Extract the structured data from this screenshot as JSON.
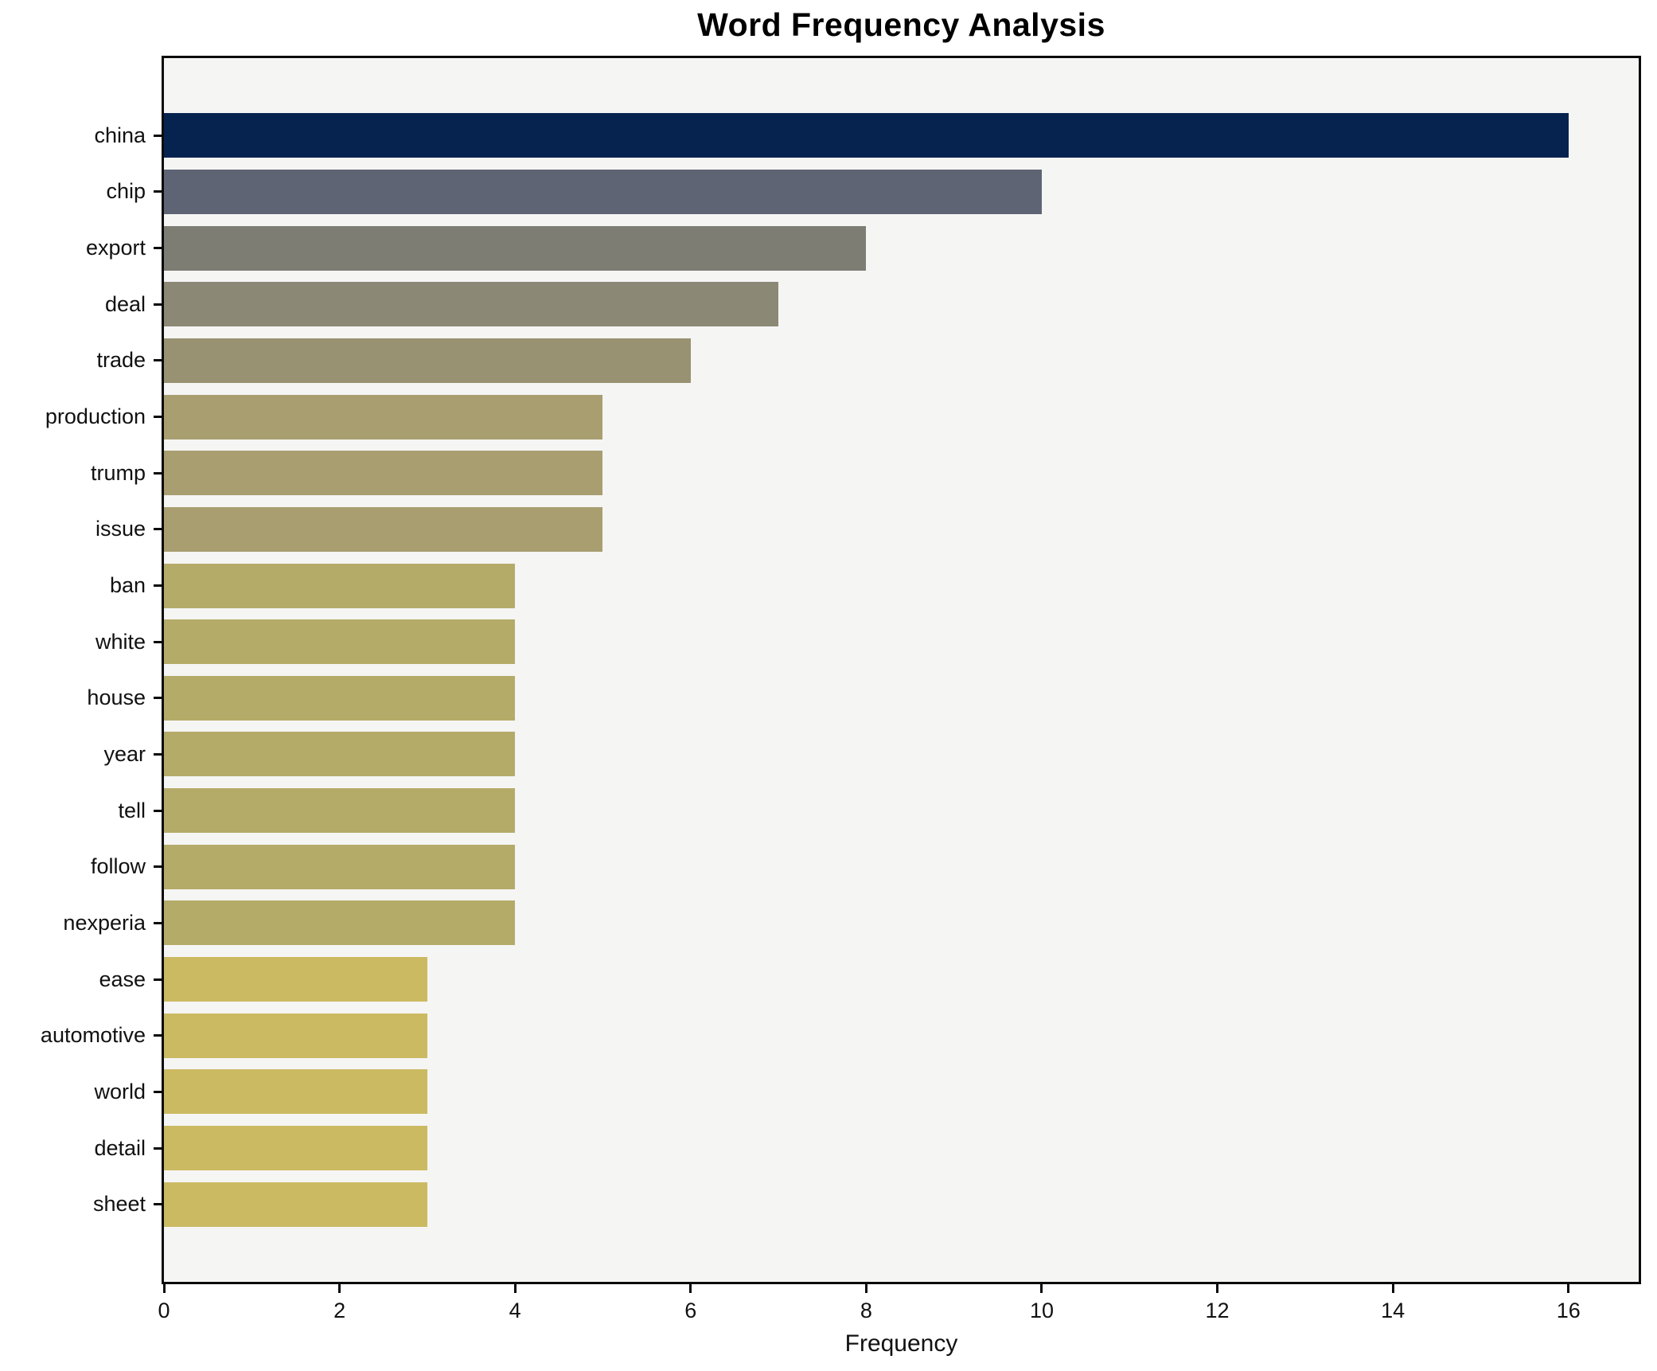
{
  "chart_data": {
    "type": "bar",
    "orientation": "horizontal",
    "title": "Word Frequency Analysis",
    "xlabel": "Frequency",
    "ylabel": "",
    "categories": [
      "china",
      "chip",
      "export",
      "deal",
      "trade",
      "production",
      "trump",
      "issue",
      "ban",
      "white",
      "house",
      "year",
      "tell",
      "follow",
      "nexperia",
      "ease",
      "automotive",
      "world",
      "detail",
      "sheet"
    ],
    "values": [
      16,
      10,
      8,
      7,
      6,
      5,
      5,
      5,
      4,
      4,
      4,
      4,
      4,
      4,
      4,
      3,
      3,
      3,
      3,
      3
    ],
    "bar_colors": [
      "#06234f",
      "#5f6474",
      "#7e7d73",
      "#8b8875",
      "#999272",
      "#a89e70",
      "#a89e70",
      "#a89e70",
      "#b5ab69",
      "#b5ab69",
      "#b5ab69",
      "#b5ab69",
      "#b5ab69",
      "#b5ab69",
      "#b5ab69",
      "#ccba62",
      "#ccba62",
      "#ccba62",
      "#ccba62",
      "#ccba62"
    ],
    "xlim": [
      0,
      16.8
    ],
    "xticks": [
      0,
      2,
      4,
      6,
      8,
      10,
      12,
      14,
      16
    ],
    "grid": false,
    "legend": null,
    "plot_background": "#f5f5f4",
    "figure_background": "#ffffff",
    "bar_height_fraction": 0.8
  }
}
